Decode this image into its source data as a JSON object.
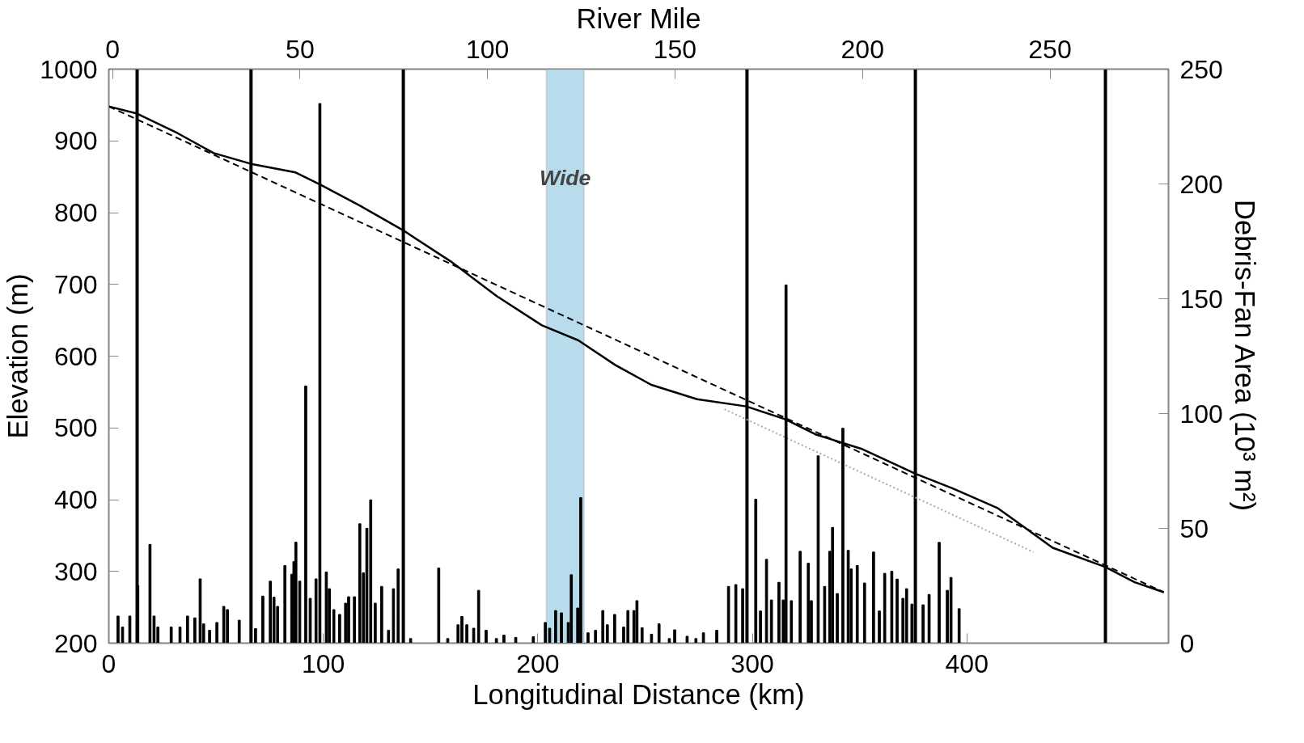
{
  "chart_data": {
    "type": "line",
    "xlabel": "Longitudinal Distance (km)",
    "ylabel": "Elevation (m)",
    "y2label": "Debris-Fan Area (10³ m²)",
    "x2label": "River Mile",
    "xlim": [
      0,
      494
    ],
    "xticks": [
      0,
      100,
      200,
      300,
      400
    ],
    "ylim": [
      200,
      1000
    ],
    "yticks": [
      200,
      300,
      400,
      500,
      600,
      700,
      800,
      900,
      1000
    ],
    "y2lim": [
      0,
      250
    ],
    "y2ticks": [
      0,
      50,
      100,
      150,
      200,
      250
    ],
    "x2lim": [
      -1,
      281.6
    ],
    "x2ticks": [
      0,
      50,
      100,
      150,
      200,
      250
    ],
    "grid": false,
    "series": [
      {
        "color": "#000000",
        "line_style": "solid",
        "x": [
          0,
          13.2,
          31.9,
          48.9,
          66.3,
          87.1,
          98.6,
          116.9,
          136.9,
          159.4,
          180.7,
          201.9,
          218.9,
          235.9,
          252.9,
          274.2,
          297.1,
          315.4,
          329.4,
          350.7,
          376.2,
          393.2,
          414.5,
          440,
          464.6,
          478.2,
          491.8
        ],
        "values": [
          948,
          938,
          911,
          883,
          868,
          856,
          839,
          810,
          776,
          732,
          684,
          643,
          622,
          588,
          560,
          540,
          530,
          512,
          491,
          471,
          436,
          416,
          388,
          333,
          306,
          285,
          271
        ]
      },
      {
        "type": "line",
        "color": "#000000",
        "line_style": "dashed",
        "x": [
          0,
          491.8
        ],
        "values": [
          948,
          271
        ]
      },
      {
        "type": "line",
        "color": "#aaaaaa",
        "line_style": "dotted",
        "x": [
          287,
          431
        ],
        "values": [
          526,
          327
        ]
      },
      {
        "type": "bar",
        "axis": "y2",
        "color": "#000000",
        "x": [
          4.3,
          6.4,
          9.8,
          13.5,
          19.2,
          21.1,
          22.9,
          29.1,
          33.2,
          36.7,
          40.1,
          42.6,
          44.2,
          47,
          50.4,
          53.6,
          55.3,
          60.8,
          68.4,
          71.8,
          75.3,
          77,
          78.7,
          82.1,
          85.3,
          86.3,
          87.2,
          89,
          91.8,
          93.9,
          96.6,
          98.4,
          101.4,
          102.8,
          104.9,
          107.6,
          110.4,
          111.8,
          114.5,
          117,
          118.7,
          120.3,
          122.1,
          124.2,
          127.2,
          130.4,
          132.7,
          134.9,
          140.7,
          153.8,
          158,
          162.8,
          164.6,
          166.9,
          170.1,
          172.4,
          175.9,
          180.7,
          184.2,
          189.7,
          197.9,
          203.5,
          205.5,
          208.3,
          211,
          214.2,
          215.6,
          218.6,
          220,
          223.4,
          226.9,
          230.3,
          232.4,
          235.8,
          240,
          242,
          244.8,
          246.2,
          248.6,
          253,
          256.5,
          261.3,
          263.8,
          269.6,
          273.7,
          277.2,
          283.4,
          288.9,
          292.3,
          295.5,
          301.6,
          303.8,
          306.6,
          308.9,
          312.4,
          314.4,
          315.7,
          318.2,
          322.3,
          326.1,
          327.5,
          330.7,
          333.7,
          336.1,
          337.4,
          339.6,
          342.2,
          344.7,
          346.1,
          348.9,
          352.3,
          356.5,
          359.2,
          361.7,
          365,
          367.5,
          370.2,
          371.9,
          374.4,
          379.6,
          382.4,
          387.1,
          390.9,
          392.6,
          396.4
        ],
        "values": [
          11.8,
          7,
          11.8,
          25,
          43,
          11.8,
          7,
          7,
          7,
          11.8,
          11,
          28,
          8.4,
          5.6,
          9,
          16,
          14.6,
          10,
          6.3,
          20.5,
          27,
          20,
          16,
          33.8,
          30,
          35.5,
          44,
          27,
          112,
          19.5,
          28,
          235,
          31,
          23.7,
          14.6,
          12.5,
          17.4,
          20.2,
          20.2,
          52,
          30.6,
          50,
          62.4,
          17.4,
          24.7,
          5.6,
          23.7,
          32.3,
          2,
          32.7,
          2,
          8,
          11.6,
          8,
          6.5,
          23,
          5.6,
          2,
          3.5,
          2.5,
          2.8,
          9,
          6.5,
          14.2,
          13.2,
          9,
          29.8,
          15.3,
          63.4,
          4.5,
          5.6,
          14.2,
          8,
          12.5,
          7,
          14.2,
          14.2,
          18.5,
          6.7,
          3.9,
          8.4,
          2,
          5.8,
          3,
          2,
          4.5,
          5.6,
          24.7,
          25.5,
          23.7,
          62.7,
          14,
          36.5,
          18.8,
          26.5,
          18.8,
          156,
          18.5,
          40,
          34.8,
          18.5,
          81.6,
          24.7,
          40,
          50.4,
          21.6,
          93.6,
          40.4,
          32.3,
          33.8,
          26.2,
          39.7,
          14,
          30.4,
          31.3,
          27.9,
          19.5,
          23.7,
          17,
          16.7,
          21.2,
          43.9,
          23,
          28.6,
          15
        ]
      }
    ],
    "ref_lines": [
      {
        "axis": "x",
        "value": 13.2,
        "color": "#000000"
      },
      {
        "axis": "x",
        "value": 66.3,
        "color": "#000000"
      },
      {
        "axis": "x",
        "value": 137.3,
        "color": "#000000"
      },
      {
        "axis": "x",
        "value": 297.5,
        "color": "#000000"
      },
      {
        "axis": "x",
        "value": 376,
        "color": "#000000"
      },
      {
        "axis": "x",
        "value": 464.6,
        "color": "#000000"
      }
    ],
    "bands": [
      {
        "axis": "x",
        "from": 204,
        "to": 221.5,
        "label": "Wide",
        "color": "#b9dcec"
      }
    ]
  }
}
